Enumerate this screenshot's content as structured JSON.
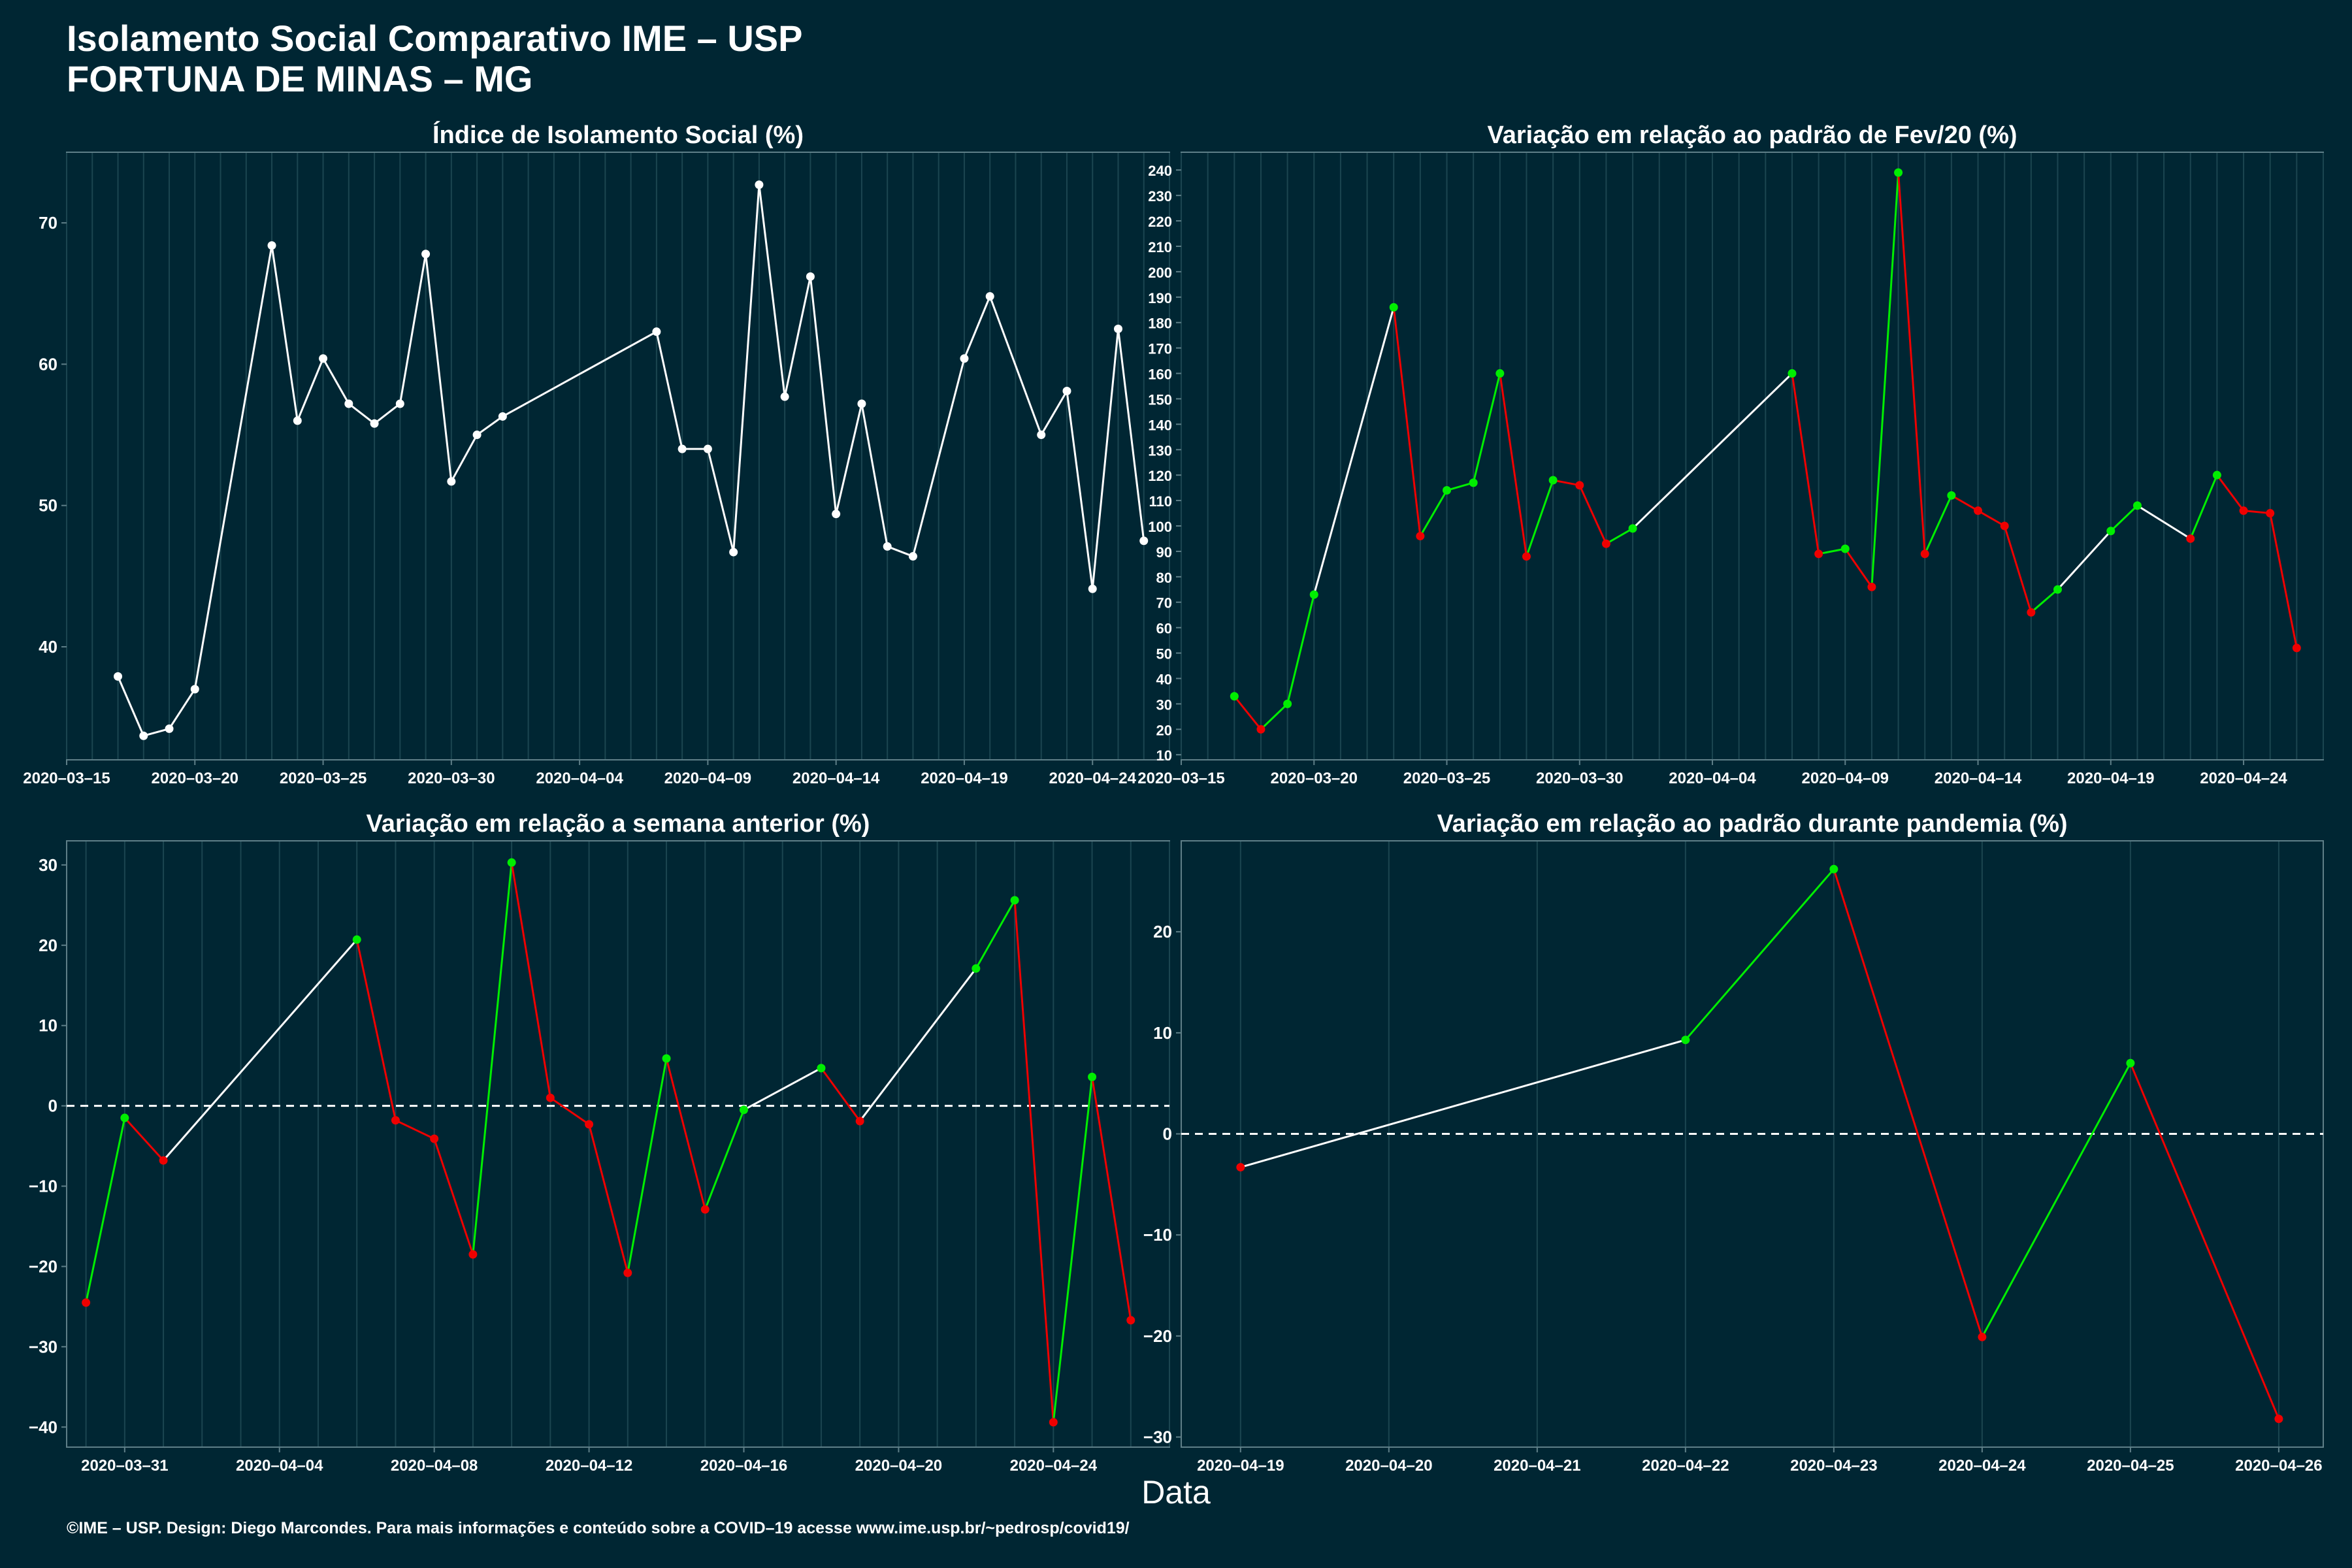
{
  "header": {
    "title": "Isolamento Social Comparativo IME – USP",
    "subtitle": "FORTUNA DE MINAS – MG"
  },
  "footer": "©IME – USP. Design: Diego Marcondes. Para mais informações e conteúdo sobre a COVID–19 acesse www.ime.usp.br/~pedrosp/covid19/",
  "xlabel": "Data",
  "colors": {
    "background": "#002633",
    "panel": "#002633",
    "grid": "#1b4550",
    "axis": "#5f7f88",
    "line": "#ffffff",
    "up": "#00ee00",
    "down": "#ee0000"
  },
  "chart_data": [
    {
      "type": "line",
      "title": "Índice de Isolamento Social (%)",
      "xlim": [
        "2020-03-15",
        "2020-04-27"
      ],
      "ylim": [
        32,
        75
      ],
      "yticks": [
        40,
        50,
        60,
        70
      ],
      "xticks": [
        "2020-03-15",
        "2020-03-20",
        "2020-03-25",
        "2020-03-30",
        "2020-04-04",
        "2020-04-09",
        "2020-04-14",
        "2020-04-19",
        "2020-04-24"
      ],
      "x": [
        "2020-03-17",
        "2020-03-18",
        "2020-03-19",
        "2020-03-20",
        "2020-03-23",
        "2020-03-24",
        "2020-03-25",
        "2020-03-26",
        "2020-03-27",
        "2020-03-28",
        "2020-03-29",
        "2020-03-30",
        "2020-03-31",
        "2020-04-01",
        "2020-04-07",
        "2020-04-08",
        "2020-04-09",
        "2020-04-10",
        "2020-04-11",
        "2020-04-12",
        "2020-04-13",
        "2020-04-14",
        "2020-04-15",
        "2020-04-16",
        "2020-04-17",
        "2020-04-19",
        "2020-04-20",
        "2020-04-22",
        "2020-04-23",
        "2020-04-24",
        "2020-04-25",
        "2020-04-26"
      ],
      "y": [
        37.9,
        33.7,
        34.2,
        37.0,
        68.4,
        56.0,
        60.4,
        57.2,
        55.8,
        57.2,
        67.8,
        51.7,
        55.0,
        56.3,
        62.3,
        54.0,
        54.0,
        46.7,
        72.7,
        57.7,
        66.2,
        49.4,
        57.2,
        47.1,
        46.4,
        60.4,
        64.8,
        55.0,
        58.1,
        44.1,
        62.5,
        47.5
      ]
    },
    {
      "type": "line",
      "title": "Variação em relação ao padrão de Fev/20 (%)",
      "xlim": [
        "2020-03-15",
        "2020-04-27"
      ],
      "ylim": [
        8,
        247
      ],
      "yticks": [
        10,
        20,
        30,
        40,
        50,
        60,
        70,
        80,
        90,
        100,
        110,
        120,
        130,
        140,
        150,
        160,
        170,
        180,
        190,
        200,
        210,
        220,
        230,
        240
      ],
      "xticks": [
        "2020-03-15",
        "2020-03-20",
        "2020-03-25",
        "2020-03-30",
        "2020-04-04",
        "2020-04-09",
        "2020-04-14",
        "2020-04-19",
        "2020-04-24"
      ],
      "x": [
        "2020-03-17",
        "2020-03-18",
        "2020-03-19",
        "2020-03-20",
        "2020-03-23",
        "2020-03-24",
        "2020-03-25",
        "2020-03-26",
        "2020-03-27",
        "2020-03-28",
        "2020-03-29",
        "2020-03-30",
        "2020-03-31",
        "2020-04-01",
        "2020-04-07",
        "2020-04-08",
        "2020-04-09",
        "2020-04-10",
        "2020-04-11",
        "2020-04-12",
        "2020-04-13",
        "2020-04-14",
        "2020-04-15",
        "2020-04-16",
        "2020-04-17",
        "2020-04-19",
        "2020-04-20",
        "2020-04-22",
        "2020-04-23",
        "2020-04-24",
        "2020-04-25",
        "2020-04-26"
      ],
      "y": [
        33,
        20,
        30,
        73,
        186,
        96,
        114,
        117,
        160,
        88,
        118,
        116,
        93,
        99,
        160,
        89,
        91,
        76,
        239,
        89,
        112,
        106,
        100,
        66,
        75,
        98,
        108,
        95,
        120,
        106,
        105,
        52
      ]
    },
    {
      "type": "line",
      "title": "Variação em relação a semana anterior (%)",
      "xlim": [
        "2020-03-29.5",
        "2020-04-27"
      ],
      "ylim": [
        -42.5,
        33
      ],
      "yticks": [
        -40,
        -30,
        -20,
        -10,
        0,
        10,
        20,
        30
      ],
      "xticks": [
        "2020-03-31",
        "2020-04-04",
        "2020-04-08",
        "2020-04-12",
        "2020-04-16",
        "2020-04-20",
        "2020-04-24"
      ],
      "reference_line": 0,
      "x": [
        "2020-03-30",
        "2020-03-31",
        "2020-04-01",
        "2020-04-06",
        "2020-04-07",
        "2020-04-08",
        "2020-04-09",
        "2020-04-10",
        "2020-04-11",
        "2020-04-12",
        "2020-04-13",
        "2020-04-14",
        "2020-04-15",
        "2020-04-16",
        "2020-04-18",
        "2020-04-19",
        "2020-04-22",
        "2020-04-23",
        "2020-04-24",
        "2020-04-25",
        "2020-04-26"
      ],
      "y": [
        -24.5,
        -1.5,
        -6.8,
        20.7,
        -1.8,
        -4.1,
        -18.5,
        30.3,
        1.0,
        -2.3,
        -20.8,
        5.9,
        -12.9,
        -0.5,
        4.7,
        -1.9,
        17.1,
        25.6,
        -39.4,
        3.6,
        -26.7
      ]
    },
    {
      "type": "line",
      "title": "Variação em relação ao padrão durante pandemia (%)",
      "xlim": [
        "2020-04-18.6",
        "2020-04-26.3"
      ],
      "ylim": [
        -31,
        29
      ],
      "yticks": [
        -30,
        -20,
        -10,
        0,
        10,
        20
      ],
      "xticks": [
        "2020-04-19",
        "2020-04-20",
        "2020-04-21",
        "2020-04-22",
        "2020-04-23",
        "2020-04-24",
        "2020-04-25",
        "2020-04-26"
      ],
      "reference_line": 0,
      "x": [
        "2020-04-19",
        "2020-04-22",
        "2020-04-23",
        "2020-04-24",
        "2020-04-25",
        "2020-04-26"
      ],
      "y": [
        -3.3,
        9.3,
        26.2,
        -20.1,
        7.0,
        -28.2
      ]
    }
  ]
}
